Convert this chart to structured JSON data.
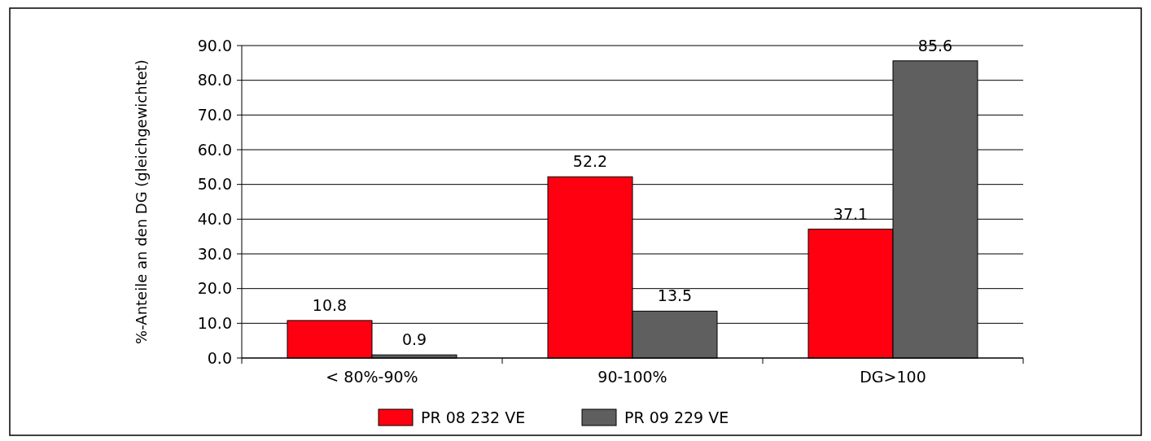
{
  "chart_data": {
    "type": "bar",
    "ylabel": "%-Anteile an den DG (gleichgewichtet)",
    "categories": [
      "< 80%-90%",
      "90-100%",
      "DG>100"
    ],
    "series": [
      {
        "name": "PR  08 232 VE",
        "color": "#ff0010",
        "values": [
          10.8,
          52.2,
          37.1
        ]
      },
      {
        "name": "PR  09 229 VE",
        "color": "#5f5f5f",
        "values": [
          0.9,
          13.5,
          85.6
        ]
      }
    ],
    "ylim": [
      0,
      90
    ],
    "yticks": [
      {
        "value": 0,
        "label": "0.0"
      },
      {
        "value": 10,
        "label": "10.0"
      },
      {
        "value": 20,
        "label": "20.0"
      },
      {
        "value": 30,
        "label": "30.0"
      },
      {
        "value": 40,
        "label": "40.0"
      },
      {
        "value": 50,
        "label": "50.0"
      },
      {
        "value": 60,
        "label": "60.0"
      },
      {
        "value": 70,
        "label": "70.0"
      },
      {
        "value": 80,
        "label": "80.0"
      },
      {
        "value": 90,
        "label": "90.0"
      }
    ],
    "grid": "y",
    "legend": "bottom",
    "data_labels": true
  }
}
